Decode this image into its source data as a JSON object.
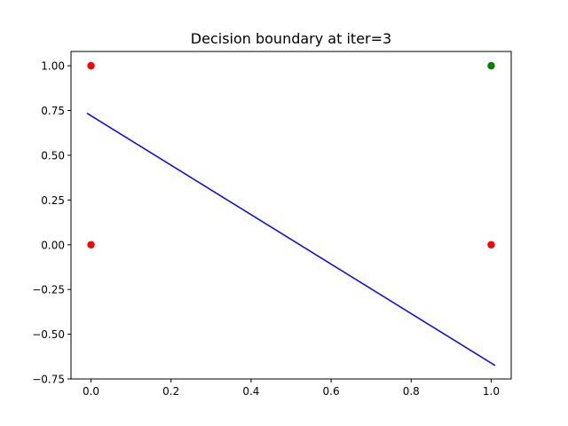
{
  "chart_data": {
    "type": "scatter",
    "title": "Decision boundary at iter=3",
    "xlabel": "",
    "ylabel": "",
    "xlim": [
      -0.05,
      1.05
    ],
    "ylim": [
      -0.75,
      1.08
    ],
    "x_ticks": [
      "0.0",
      "0.2",
      "0.4",
      "0.6",
      "0.8",
      "1.0"
    ],
    "x_tick_values": [
      0.0,
      0.2,
      0.4,
      0.6,
      0.8,
      1.0
    ],
    "y_ticks": [
      "−0.75",
      "−0.50",
      "−0.25",
      "0.00",
      "0.25",
      "0.50",
      "0.75",
      "1.00"
    ],
    "y_tick_values": [
      -0.75,
      -0.5,
      -0.25,
      0.0,
      0.25,
      0.5,
      0.75,
      1.0
    ],
    "grid": false,
    "points": [
      {
        "x": 0,
        "y": 1,
        "color": "#ff0000"
      },
      {
        "x": 0,
        "y": 0,
        "color": "#ff0000"
      },
      {
        "x": 1,
        "y": 1,
        "color": "#008000"
      },
      {
        "x": 1,
        "y": 0,
        "color": "#ff0000"
      }
    ],
    "lines": [
      {
        "x": [
          -0.01,
          1.01
        ],
        "y": [
          0.735,
          -0.675
        ],
        "color": "#0000ff"
      }
    ]
  }
}
